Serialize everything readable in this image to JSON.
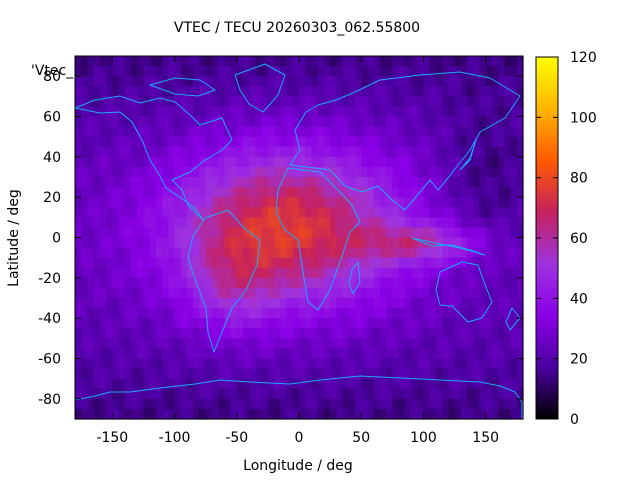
{
  "chart_data": {
    "type": "heatmap",
    "title": "VTEC / TECU 20260303_062.55800",
    "xlabel": "Longitude / deg",
    "ylabel": "Latitude / deg",
    "series_label": "'Vtec_",
    "xlim": [
      -180,
      180
    ],
    "ylim": [
      -90,
      90
    ],
    "x_ticks": [
      -150,
      -100,
      -50,
      0,
      50,
      100,
      150
    ],
    "y_ticks": [
      -80,
      -60,
      -40,
      -20,
      0,
      20,
      40,
      60,
      80
    ],
    "colorbar": {
      "range": [
        0,
        120
      ],
      "ticks": [
        0,
        20,
        40,
        60,
        80,
        100,
        120
      ],
      "colors": [
        "#000000",
        "#4b00a0",
        "#8a00e6",
        "#9e33e0",
        "#c6225e",
        "#ff5a00",
        "#ffb400",
        "#ffff00"
      ]
    },
    "field_model": {
      "background_tecu": 24,
      "features": [
        {
          "lon": -10,
          "lat": 5,
          "peak_tecu": 52,
          "sigma_lon": 65,
          "sigma_lat": 28
        },
        {
          "lon": -55,
          "lat": -25,
          "peak_tecu": 14,
          "sigma_lon": 25,
          "sigma_lat": 18
        },
        {
          "lon": 100,
          "lat": -3,
          "peak_tecu": 26,
          "sigma_lon": 35,
          "sigma_lat": 7
        },
        {
          "lon": 150,
          "lat": 25,
          "peak_tecu": -10,
          "sigma_lon": 25,
          "sigma_lat": 25
        }
      ]
    }
  }
}
